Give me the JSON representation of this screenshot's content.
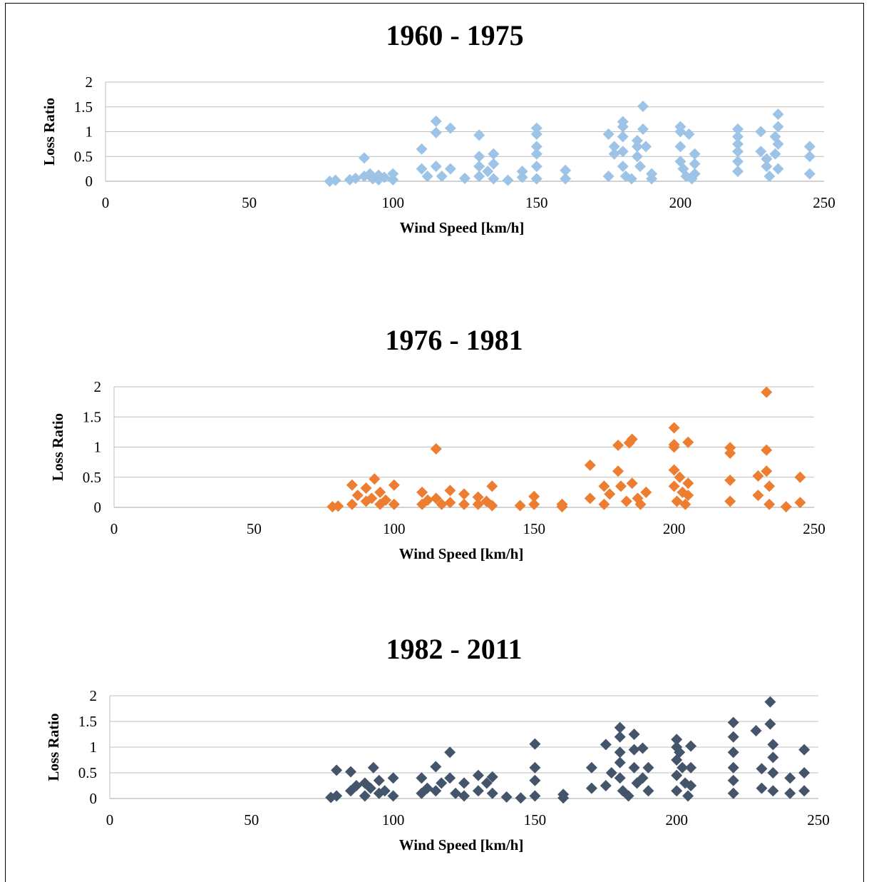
{
  "chart_data": [
    {
      "type": "scatter",
      "title": "1960 - 1975",
      "xlabel": "Wind Speed [km/h]",
      "ylabel": "Loss Ratio",
      "xlim": [
        0,
        250
      ],
      "ylim": [
        0,
        2
      ],
      "x_ticks": [
        "0",
        "50",
        "100",
        "150",
        "200",
        "250"
      ],
      "y_ticks": [
        "0",
        "0.5",
        "1",
        "1.5",
        "2"
      ],
      "grid": "horizontal",
      "marker": "diamond",
      "color": "#9DC3E6",
      "series": [
        {
          "x": [
            78,
            80,
            85,
            87,
            90,
            90,
            92,
            93,
            95,
            95,
            97,
            100,
            100,
            110,
            110,
            112,
            115,
            115,
            115,
            117,
            120,
            120,
            125,
            130,
            130,
            130,
            130,
            133,
            135,
            135,
            135,
            140,
            145,
            145,
            150,
            150,
            150,
            150,
            150,
            150,
            160,
            160,
            175,
            175,
            177,
            177,
            180,
            180,
            180,
            180,
            180,
            181,
            183,
            185,
            185,
            185,
            186,
            187,
            187,
            188,
            190,
            190,
            200,
            200,
            200,
            200,
            201,
            202,
            203,
            204,
            205,
            205,
            205,
            220,
            220,
            220,
            220,
            220,
            220,
            228,
            228,
            230,
            230,
            231,
            233,
            233,
            234,
            234,
            234,
            234,
            245,
            245,
            245
          ],
          "y": [
            0.0,
            0.02,
            0.03,
            0.06,
            0.47,
            0.1,
            0.15,
            0.05,
            0.12,
            0.03,
            0.08,
            0.15,
            0.03,
            0.65,
            0.25,
            0.1,
            1.21,
            0.98,
            0.3,
            0.1,
            1.07,
            0.25,
            0.06,
            0.93,
            0.5,
            0.3,
            0.1,
            0.2,
            0.55,
            0.35,
            0.05,
            0.02,
            0.2,
            0.08,
            1.07,
            0.95,
            0.7,
            0.55,
            0.3,
            0.05,
            0.22,
            0.05,
            0.95,
            0.1,
            0.7,
            0.55,
            1.2,
            1.1,
            0.9,
            0.6,
            0.3,
            0.1,
            0.05,
            0.82,
            0.7,
            0.5,
            0.3,
            1.51,
            1.05,
            0.7,
            0.15,
            0.05,
            1.1,
            1.0,
            0.7,
            0.4,
            0.25,
            0.1,
            0.95,
            0.05,
            0.55,
            0.35,
            0.15,
            1.05,
            0.9,
            0.75,
            0.6,
            0.4,
            0.2,
            1.0,
            0.6,
            0.45,
            0.3,
            0.1,
            0.9,
            0.55,
            1.35,
            1.1,
            0.75,
            0.25,
            0.7,
            0.5,
            0.15
          ]
        }
      ]
    },
    {
      "type": "scatter",
      "title": "1976 - 1981",
      "xlabel": "Wind Speed [km/h]",
      "ylabel": "Loss Ratio",
      "xlim": [
        0,
        250
      ],
      "ylim": [
        0,
        2
      ],
      "x_ticks": [
        "0",
        "50",
        "100",
        "150",
        "200",
        "250"
      ],
      "y_ticks": [
        "0",
        "0.5",
        "1",
        "1.5",
        "2"
      ],
      "grid": "horizontal",
      "marker": "diamond",
      "color": "#ED7D31",
      "series": [
        {
          "x": [
            78,
            80,
            85,
            85,
            87,
            90,
            90,
            92,
            93,
            95,
            95,
            97,
            100,
            100,
            110,
            110,
            112,
            115,
            115,
            117,
            120,
            120,
            125,
            125,
            130,
            130,
            133,
            135,
            135,
            145,
            150,
            150,
            160,
            160,
            170,
            170,
            175,
            175,
            177,
            180,
            180,
            181,
            183,
            184,
            185,
            185,
            187,
            188,
            190,
            200,
            200,
            200,
            200,
            200,
            201,
            202,
            203,
            204,
            205,
            205,
            205,
            220,
            220,
            220,
            220,
            230,
            230,
            233,
            233,
            233,
            234,
            234,
            240,
            245,
            245
          ],
          "y": [
            0.01,
            0.02,
            0.37,
            0.05,
            0.2,
            0.32,
            0.1,
            0.15,
            0.47,
            0.25,
            0.05,
            0.12,
            0.37,
            0.05,
            0.25,
            0.05,
            0.12,
            0.97,
            0.15,
            0.05,
            0.28,
            0.08,
            0.22,
            0.05,
            0.17,
            0.05,
            0.1,
            0.35,
            0.03,
            0.03,
            0.18,
            0.05,
            0.05,
            0.01,
            0.7,
            0.15,
            0.35,
            0.05,
            0.22,
            1.03,
            0.6,
            0.35,
            0.1,
            1.07,
            1.13,
            0.4,
            0.15,
            0.05,
            0.25,
            1.32,
            1.04,
            1.0,
            0.62,
            0.35,
            0.1,
            0.5,
            0.25,
            0.05,
            1.08,
            0.4,
            0.2,
            0.99,
            0.9,
            0.45,
            0.1,
            0.52,
            0.2,
            1.91,
            0.95,
            0.6,
            0.35,
            0.05,
            0.01,
            0.5,
            0.08
          ]
        }
      ]
    },
    {
      "type": "scatter",
      "title": "1982 - 2011",
      "xlabel": "Wind Speed [km/h]",
      "ylabel": "Loss Ratio",
      "xlim": [
        0,
        250
      ],
      "ylim": [
        0,
        2
      ],
      "x_ticks": [
        "0",
        "50",
        "100",
        "150",
        "200",
        "250"
      ],
      "y_ticks": [
        "0",
        "0.5",
        "1",
        "1.5",
        "2"
      ],
      "grid": "horizontal",
      "marker": "diamond",
      "color": "#44546A",
      "series": [
        {
          "x": [
            78,
            80,
            80,
            85,
            85,
            87,
            90,
            90,
            92,
            93,
            95,
            95,
            97,
            100,
            100,
            110,
            110,
            112,
            115,
            115,
            117,
            120,
            120,
            122,
            125,
            125,
            130,
            130,
            133,
            135,
            135,
            140,
            145,
            150,
            150,
            150,
            150,
            160,
            160,
            170,
            170,
            175,
            175,
            177,
            180,
            180,
            180,
            180,
            180,
            181,
            183,
            185,
            185,
            185,
            186,
            188,
            188,
            190,
            190,
            200,
            200,
            200,
            200,
            200,
            201,
            202,
            203,
            204,
            205,
            205,
            205,
            220,
            220,
            220,
            220,
            220,
            220,
            228,
            230,
            230,
            233,
            233,
            234,
            234,
            234,
            234,
            240,
            240,
            245,
            245,
            245
          ],
          "y": [
            0.02,
            0.55,
            0.05,
            0.52,
            0.15,
            0.25,
            0.3,
            0.05,
            0.2,
            0.6,
            0.35,
            0.1,
            0.15,
            0.4,
            0.05,
            0.4,
            0.1,
            0.2,
            0.62,
            0.15,
            0.3,
            0.9,
            0.4,
            0.1,
            0.3,
            0.05,
            0.45,
            0.15,
            0.3,
            0.42,
            0.1,
            0.03,
            0.01,
            1.06,
            0.6,
            0.35,
            0.05,
            0.08,
            0.01,
            0.6,
            0.2,
            1.05,
            0.25,
            0.5,
            1.38,
            1.2,
            0.9,
            0.7,
            0.4,
            0.15,
            0.05,
            1.25,
            0.95,
            0.6,
            0.3,
            0.98,
            0.4,
            0.6,
            0.15,
            1.15,
            1.0,
            0.75,
            0.45,
            0.15,
            0.9,
            0.6,
            0.3,
            0.05,
            1.02,
            0.6,
            0.25,
            1.48,
            1.2,
            0.9,
            0.6,
            0.35,
            0.1,
            1.32,
            0.58,
            0.2,
            1.88,
            1.45,
            1.05,
            0.8,
            0.5,
            0.15,
            0.4,
            0.1,
            0.95,
            0.5,
            0.15
          ]
        }
      ]
    }
  ]
}
